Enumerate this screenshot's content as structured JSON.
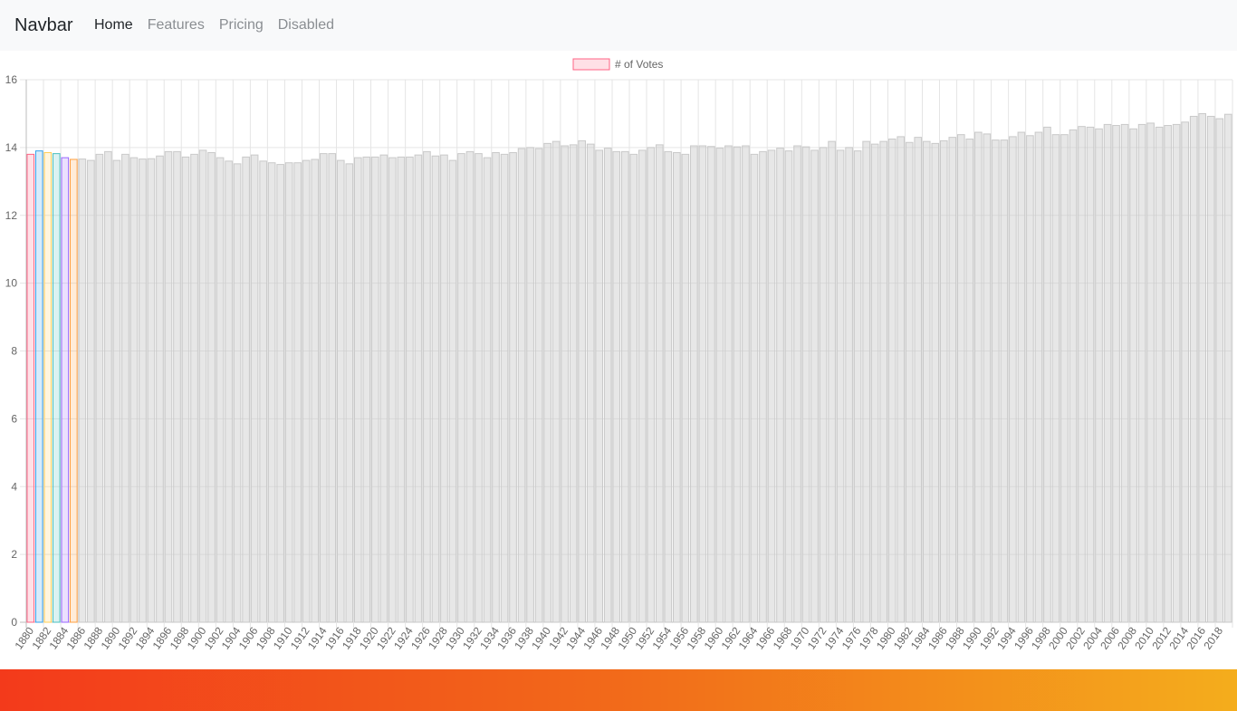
{
  "navbar": {
    "brand": "Navbar",
    "links": [
      {
        "label": "Home",
        "state": "active"
      },
      {
        "label": "Features",
        "state": "normal"
      },
      {
        "label": "Pricing",
        "state": "normal"
      },
      {
        "label": "Disabled",
        "state": "disabled"
      }
    ]
  },
  "chart_data": {
    "type": "bar",
    "title": "",
    "xlabel": "",
    "ylabel": "",
    "ylim": [
      0,
      16
    ],
    "yticks": [
      0,
      2,
      4,
      6,
      8,
      10,
      12,
      14,
      16
    ],
    "grid": true,
    "legend_position": "top-center",
    "legend": [
      {
        "label": "# of Votes",
        "color": "#ff6384"
      }
    ],
    "x_start": 1880,
    "x_end": 2019,
    "tick_every": 2,
    "highlight_colors": [
      "#ff6384",
      "#36a2eb",
      "#ffce56",
      "#4bc0c0",
      "#9966ff",
      "#ff9f40"
    ],
    "default_color": "#c9c9c9",
    "series": [
      {
        "name": "# of Votes",
        "values": [
          13.8,
          13.9,
          13.85,
          13.82,
          13.7,
          13.65,
          13.66,
          13.62,
          13.8,
          13.88,
          13.62,
          13.8,
          13.7,
          13.66,
          13.67,
          13.75,
          13.88,
          13.88,
          13.72,
          13.8,
          13.92,
          13.85,
          13.7,
          13.6,
          13.52,
          13.72,
          13.78,
          13.6,
          13.55,
          13.5,
          13.55,
          13.55,
          13.62,
          13.65,
          13.82,
          13.82,
          13.62,
          13.52,
          13.7,
          13.72,
          13.72,
          13.78,
          13.7,
          13.72,
          13.72,
          13.78,
          13.88,
          13.75,
          13.78,
          13.62,
          13.82,
          13.88,
          13.82,
          13.7,
          13.85,
          13.8,
          13.85,
          13.97,
          14.0,
          13.97,
          14.12,
          14.18,
          14.05,
          14.08,
          14.2,
          14.1,
          13.92,
          13.98,
          13.88,
          13.88,
          13.8,
          13.92,
          14.0,
          14.08,
          13.88,
          13.85,
          13.8,
          14.05,
          14.05,
          14.03,
          13.98,
          14.05,
          14.02,
          14.05,
          13.8,
          13.88,
          13.92,
          13.98,
          13.9,
          14.05,
          14.02,
          13.92,
          14.0,
          14.18,
          13.92,
          14.0,
          13.9,
          14.18,
          14.1,
          14.18,
          14.25,
          14.32,
          14.15,
          14.3,
          14.18,
          14.12,
          14.2,
          14.3,
          14.38,
          14.25,
          14.45,
          14.4,
          14.22,
          14.22,
          14.32,
          14.45,
          14.35,
          14.45,
          14.6,
          14.38,
          14.38,
          14.52,
          14.62,
          14.6,
          14.55,
          14.68,
          14.65,
          14.68,
          14.55,
          14.68,
          14.72,
          14.6,
          14.65,
          14.68,
          14.75,
          14.92,
          15.0,
          14.92,
          14.85,
          14.98
        ]
      }
    ]
  }
}
